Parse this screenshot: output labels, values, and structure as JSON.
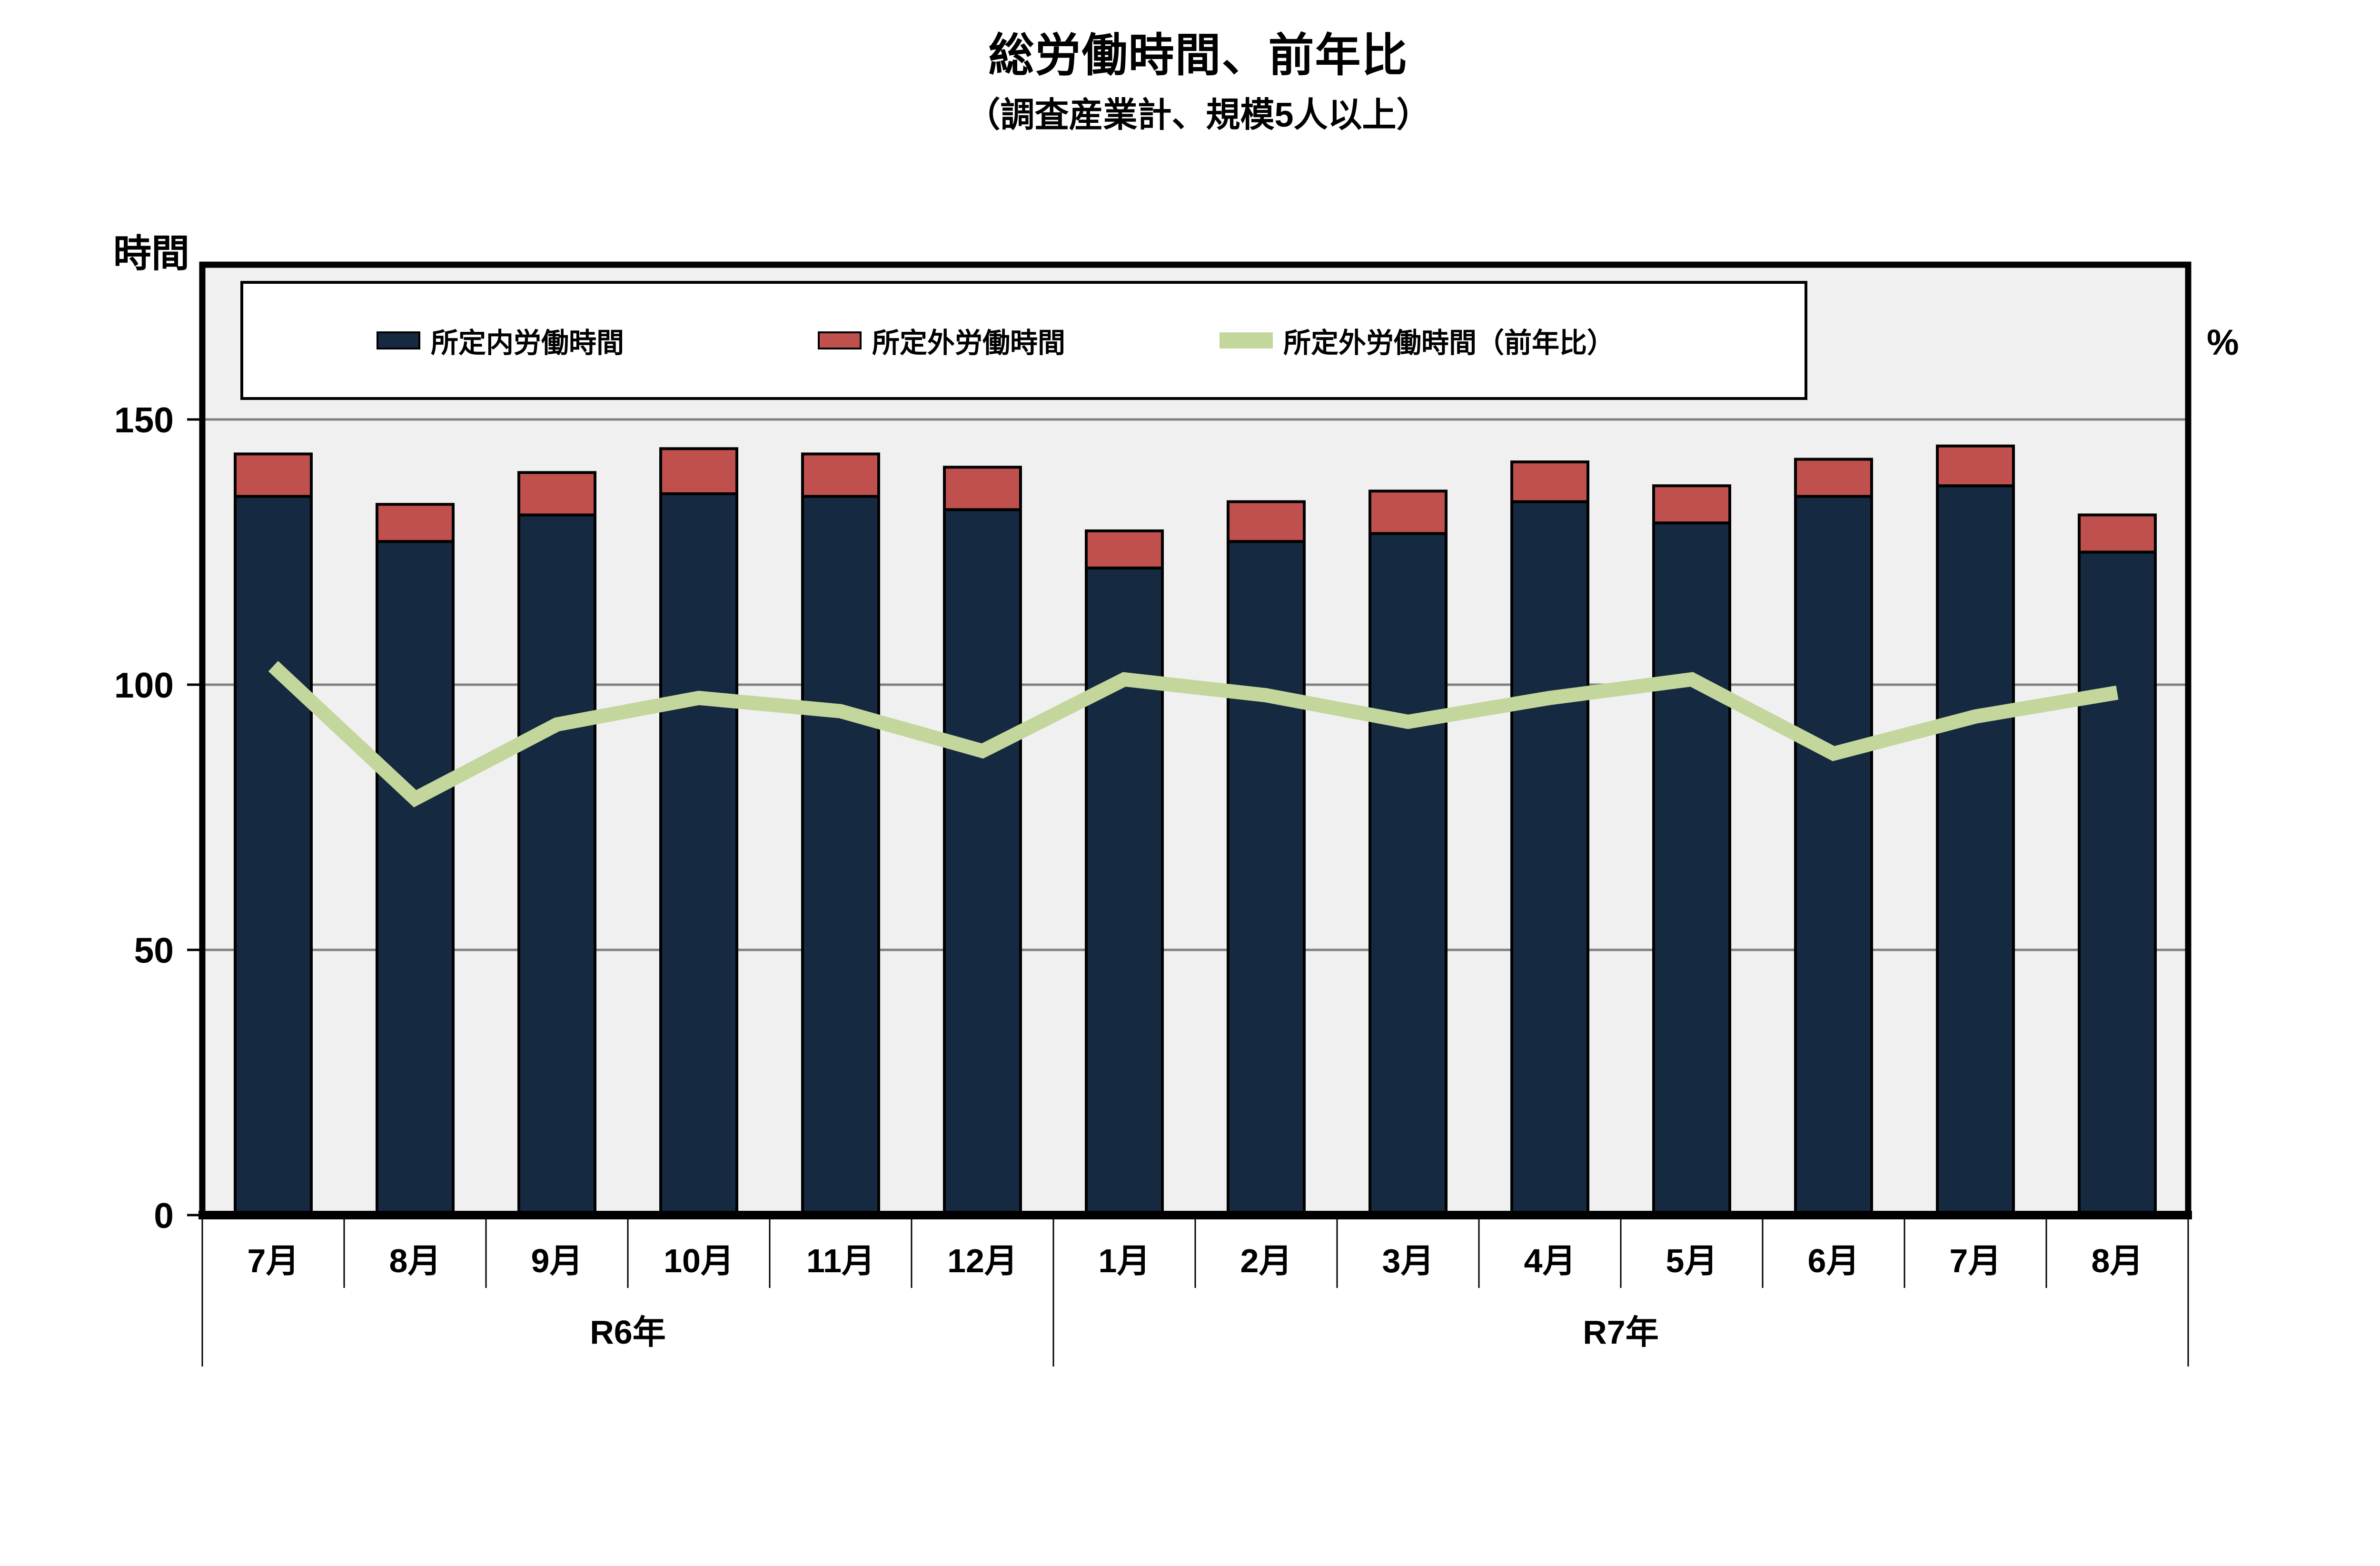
{
  "title": "総労働時間、前年比",
  "subtitle": "（調査産業計、規模5人以上）",
  "axes": {
    "left_unit": "時間",
    "right_unit": "%",
    "y_ticks": [
      0,
      50,
      100,
      150
    ],
    "ylim": [
      0,
      150
    ]
  },
  "legend": [
    {
      "label": "所定内労働時間",
      "type": "bar",
      "color": "#152940"
    },
    {
      "label": "所定外労働時間",
      "type": "bar",
      "color": "#C0504D"
    },
    {
      "label": "所定外労働時間（前年比）",
      "type": "line",
      "color": "#C3D69B"
    }
  ],
  "colors": {
    "plot_background": "#F0F0F0",
    "gridline": "#808080",
    "frame": "#000000",
    "bar_regular": "#152940",
    "bar_overtime": "#C0504D",
    "yoy_line": "#C3D69B"
  },
  "chart_data": {
    "type": "bar",
    "subtype": "stacked-bar-with-line",
    "categories": [
      "7月",
      "8月",
      "9月",
      "10月",
      "11月",
      "12月",
      "1月",
      "2月",
      "3月",
      "4月",
      "5月",
      "6月",
      "7月",
      "8月"
    ],
    "year_groups": [
      {
        "label": "R6年",
        "from": 0,
        "to": 5
      },
      {
        "label": "R7年",
        "from": 6,
        "to": 13
      }
    ],
    "series": [
      {
        "name": "所定内労働時間",
        "type": "bar",
        "stack": true,
        "axis": "left",
        "unit": "時間",
        "color": "#152940",
        "values": [
          135.5,
          127,
          132,
          136,
          135.5,
          133,
          122,
          127,
          128.5,
          134.5,
          130.5,
          135.5,
          137.5,
          125
        ]
      },
      {
        "name": "所定外労働時間",
        "type": "bar",
        "stack": true,
        "axis": "left",
        "unit": "時間",
        "color": "#C0504D",
        "values": [
          8,
          7,
          8,
          8.5,
          8,
          8,
          7,
          7.5,
          8,
          7.5,
          7,
          7,
          7.5,
          7
        ]
      },
      {
        "name": "所定外労働時間（前年比）",
        "type": "line",
        "axis": "right",
        "unit": "%",
        "color": "#C3D69B",
        "values": [
          103.5,
          78.5,
          92.5,
          97.5,
          95,
          87.5,
          101,
          98,
          93,
          97.5,
          101,
          87,
          94,
          98.5
        ]
      }
    ],
    "title": "総労働時間、前年比",
    "xlabel": "",
    "ylabel": "時間",
    "ylabel_right": "%",
    "ylim": [
      0,
      150
    ],
    "grid": true,
    "gridlines_at": [
      50,
      100,
      150
    ],
    "legend_position": "top-inside"
  }
}
